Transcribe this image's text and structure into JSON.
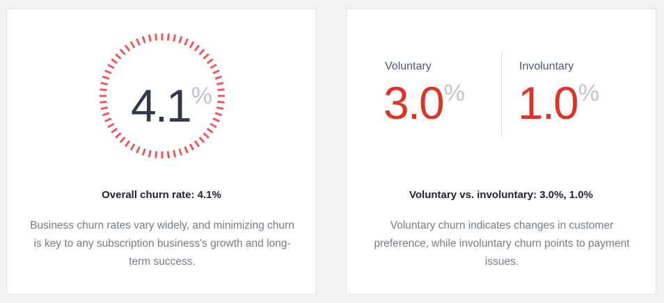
{
  "colors": {
    "gauge_ticks": "#e05a63",
    "metric_value": "#d9352a",
    "number_dark": "#333846",
    "percent_sign": "#c1c3cc"
  },
  "overall": {
    "value": "4.1",
    "percent_sign": "%",
    "gauge_fraction": 0.041,
    "title": "Overall churn rate: 4.1%",
    "description": "Business churn rates vary widely, and minimizing churn is key to any subscription business's growth and long-term success."
  },
  "split": {
    "voluntary": {
      "label": "Voluntary",
      "value": "3.0",
      "percent_sign": "%"
    },
    "involuntary": {
      "label": "Involuntary",
      "value": "1.0",
      "percent_sign": "%"
    },
    "title": "Voluntary vs. involuntary: 3.0%, 1.0%",
    "description": "Voluntary churn indicates changes in customer preference, while involuntary churn points to payment issues."
  }
}
